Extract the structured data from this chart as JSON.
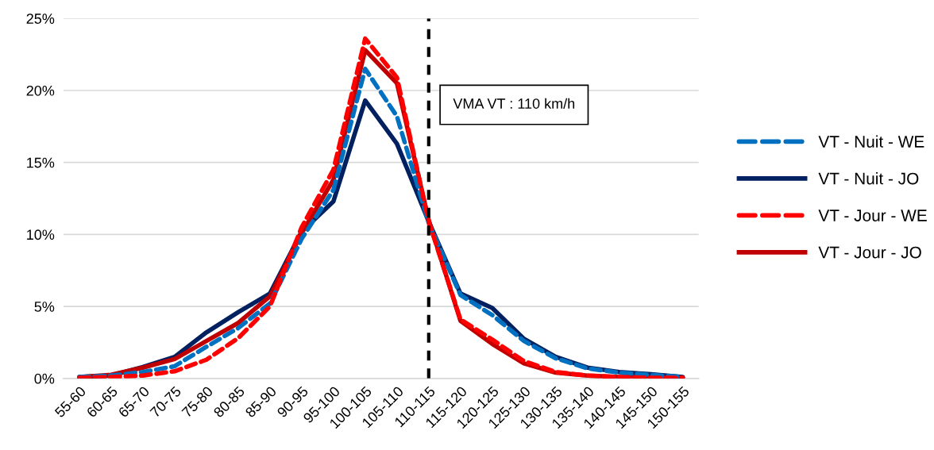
{
  "chart_data": {
    "type": "line",
    "categories": [
      "55-60",
      "60-65",
      "65-70",
      "70-75",
      "75-80",
      "80-85",
      "85-90",
      "90-95",
      "95-100",
      "100-105",
      "105-110",
      "110-115",
      "115-120",
      "120-125",
      "125-130",
      "130-135",
      "135-140",
      "140-145",
      "145-150",
      "150-155"
    ],
    "ylim": [
      0,
      25
    ],
    "yticks": [
      {
        "value": 0,
        "label": "0%"
      },
      {
        "value": 5,
        "label": "5%"
      },
      {
        "value": 10,
        "label": "10%"
      },
      {
        "value": 15,
        "label": "15%"
      },
      {
        "value": 20,
        "label": "20%"
      },
      {
        "value": 25,
        "label": "25%"
      }
    ],
    "grid": "y",
    "legend": "right",
    "marker": "none",
    "series": [
      {
        "name": "VT - Nuit - WE",
        "color": "#0070c0",
        "line_style": "dashed",
        "values": [
          0.1,
          0.2,
          0.45,
          0.85,
          2.2,
          3.5,
          5.2,
          9.7,
          13.1,
          21.5,
          18.2,
          10.8,
          5.8,
          4.4,
          2.6,
          1.4,
          0.7,
          0.4,
          0.25,
          0.1
        ]
      },
      {
        "name": "VT - Nuit - JO",
        "color": "#002060",
        "line_style": "solid",
        "values": [
          0.1,
          0.2,
          0.8,
          1.5,
          3.2,
          4.6,
          5.9,
          10.2,
          12.3,
          19.3,
          16.3,
          10.9,
          5.9,
          4.9,
          2.75,
          1.5,
          0.75,
          0.45,
          0.3,
          0.1
        ]
      },
      {
        "name": "VT - Jour - WE",
        "color": "#ff0000",
        "line_style": "dashed",
        "values": [
          0.05,
          0.1,
          0.2,
          0.5,
          1.3,
          2.8,
          5.0,
          10.5,
          14.5,
          23.6,
          20.9,
          10.9,
          4.1,
          2.7,
          1.2,
          0.45,
          0.2,
          0.1,
          0.05,
          0.05
        ]
      },
      {
        "name": "VT - Jour - JO",
        "color": "#c00000",
        "line_style": "solid",
        "values": [
          0.1,
          0.25,
          0.75,
          1.35,
          2.6,
          3.85,
          5.7,
          10.1,
          13.8,
          22.8,
          20.5,
          11.0,
          4.0,
          2.4,
          1.05,
          0.4,
          0.2,
          0.1,
          0.05,
          0.05
        ]
      }
    ],
    "ref_lines": [
      {
        "axis": "x",
        "value": "110-115",
        "label": "VMA VT : 110 km/h",
        "color": "#000000",
        "line_style": "dashed"
      }
    ]
  }
}
